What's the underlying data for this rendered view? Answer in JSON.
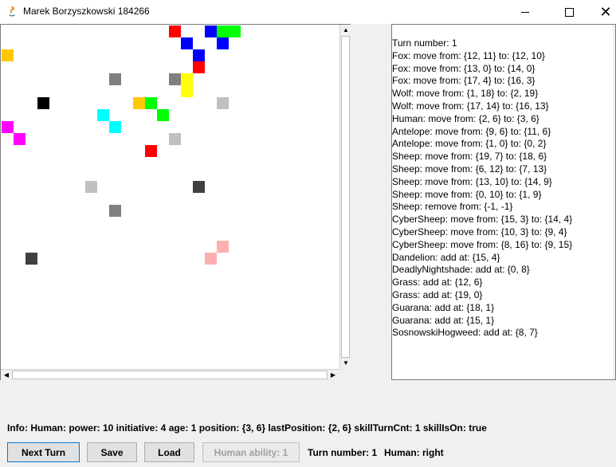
{
  "window": {
    "title": "Marek Borzyszkowski 184266",
    "icons": {
      "app": "java-icon",
      "minimize": "minimize-icon",
      "maximize": "maximize-icon",
      "close": "close-icon"
    }
  },
  "board": {
    "cells": [
      {
        "col": 14,
        "row": 0,
        "color": "#ff0000"
      },
      {
        "col": 17,
        "row": 0,
        "color": "#0000ff"
      },
      {
        "col": 18,
        "row": 0,
        "color": "#00ff00"
      },
      {
        "col": 19,
        "row": 0,
        "color": "#00ff00"
      },
      {
        "col": 15,
        "row": 1,
        "color": "#0000ff"
      },
      {
        "col": 18,
        "row": 1,
        "color": "#0000ff"
      },
      {
        "col": 0,
        "row": 2,
        "color": "#ffc800"
      },
      {
        "col": 16,
        "row": 2,
        "color": "#0000ff"
      },
      {
        "col": 16,
        "row": 3,
        "color": "#ff0000"
      },
      {
        "col": 9,
        "row": 4,
        "color": "#808080"
      },
      {
        "col": 14,
        "row": 4,
        "color": "#808080"
      },
      {
        "col": 15,
        "row": 4,
        "color": "#ffff00"
      },
      {
        "col": 15,
        "row": 5,
        "color": "#ffff00"
      },
      {
        "col": 3,
        "row": 6,
        "color": "#000000"
      },
      {
        "col": 11,
        "row": 6,
        "color": "#ffc800"
      },
      {
        "col": 12,
        "row": 6,
        "color": "#00ff00"
      },
      {
        "col": 18,
        "row": 6,
        "color": "#c0c0c0"
      },
      {
        "col": 8,
        "row": 7,
        "color": "#00ffff"
      },
      {
        "col": 13,
        "row": 7,
        "color": "#00ff00"
      },
      {
        "col": 0,
        "row": 8,
        "color": "#ff00ff"
      },
      {
        "col": 9,
        "row": 8,
        "color": "#00ffff"
      },
      {
        "col": 1,
        "row": 9,
        "color": "#ff00ff"
      },
      {
        "col": 14,
        "row": 9,
        "color": "#c0c0c0"
      },
      {
        "col": 12,
        "row": 10,
        "color": "#ff0000"
      },
      {
        "col": 7,
        "row": 13,
        "color": "#c0c0c0"
      },
      {
        "col": 16,
        "row": 13,
        "color": "#404040"
      },
      {
        "col": 9,
        "row": 15,
        "color": "#808080"
      },
      {
        "col": 18,
        "row": 18,
        "color": "#ffafaf"
      },
      {
        "col": 2,
        "row": 19,
        "color": "#404040"
      },
      {
        "col": 17,
        "row": 19,
        "color": "#ffafaf"
      }
    ]
  },
  "log": [
    "Turn number: 1",
    "Fox: move from: {12, 11} to: {12, 10}",
    "Fox: move from: {13, 0} to: {14, 0}",
    "Fox: move from: {17, 4} to: {16, 3}",
    "Wolf: move from: {1, 18} to: {2, 19}",
    "Wolf: move from: {17, 14} to: {16, 13}",
    "Human: move from: {2, 6} to: {3, 6}",
    "Antelope: move from: {9, 6} to: {11, 6}",
    "Antelope: move from: {1, 0} to: {0, 2}",
    "Sheep: move from: {19, 7} to: {18, 6}",
    "Sheep: move from: {6, 12} to: {7, 13}",
    "Sheep: move from: {13, 10} to: {14, 9}",
    "Sheep: move from: {0, 10} to: {1, 9}",
    "Sheep: remove from: {-1, -1}",
    "CyberSheep: move from: {15, 3} to: {14, 4}",
    "CyberSheep: move from: {10, 3} to: {9, 4}",
    "CyberSheep: move from: {8, 16} to: {9, 15}",
    "Dandelion: add at: {15, 4}",
    "DeadlyNightshade: add at: {0, 8}",
    "Grass: add at: {12, 6}",
    "Grass: add at: {19, 0}",
    "Guarana: add at: {18, 1}",
    "Guarana: add at: {15, 1}",
    "SosnowskiHogweed: add at: {8, 7}"
  ],
  "info": "Info: Human: power: 10 initiative: 4 age: 1 position: {3, 6} lastPosition: {2, 6} skillTurnCnt: 1 skillIsOn: true",
  "buttons": {
    "next_turn": "Next Turn",
    "save": "Save",
    "load": "Load",
    "human_ability": "Human ability: 1"
  },
  "status": {
    "turn": "Turn number: 1",
    "human": "Human: right"
  }
}
